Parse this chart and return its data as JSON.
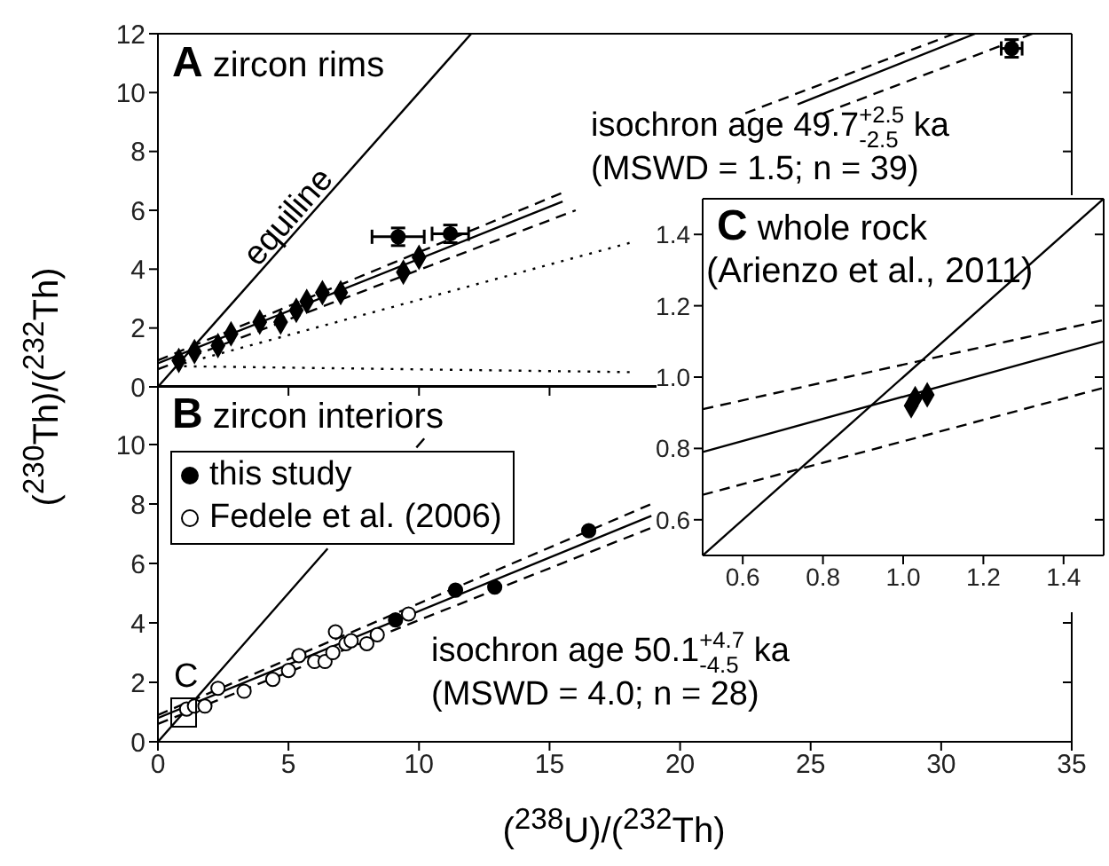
{
  "chart_data": [
    {
      "type": "scatter",
      "title": "A zircon rims",
      "ylabel": "($^{230}$Th)/($^{232}$Th)",
      "xlim": [
        0,
        35
      ],
      "xticks": [
        0,
        5,
        10,
        15,
        20,
        25,
        30,
        35
      ],
      "ylim": [
        0,
        12
      ],
      "yticks": [
        0,
        2,
        4,
        6,
        8,
        10,
        12
      ],
      "tick_labels": "y",
      "annotations": [
        "equiline",
        "isochron age 49.7$^{+2.5}$$_{-2.5}$ ka\n(MSWD = 1.5; n = 39)"
      ],
      "series": [
        {
          "type": "line",
          "x": [
            0,
            12
          ],
          "values": [
            0,
            12
          ],
          "color": "#000000",
          "line_style": "solid",
          "marker": "none"
        },
        {
          "type": "line",
          "x": [
            0,
            15.5,
            20,
            24.5,
            31.3
          ],
          "values": [
            0.8,
            6.3,
            null,
            9.6,
            12
          ],
          "color": "#000000",
          "line_style": "solid",
          "marker": "none"
        },
        {
          "type": "line",
          "x": [
            0,
            15.5,
            20,
            22.5,
            30.5
          ],
          "values": [
            0.9,
            6.6,
            null,
            9.3,
            12
          ],
          "color": "#000000",
          "line_style": "dashed",
          "marker": "none"
        },
        {
          "type": "line",
          "x": [
            0,
            16,
            20,
            25.5,
            33.5
          ],
          "values": [
            0.6,
            6.0,
            null,
            9.3,
            12
          ],
          "color": "#000000",
          "line_style": "dashed",
          "marker": "none"
        },
        {
          "type": "line",
          "x": [
            1,
            18.1
          ],
          "values": [
            0.8,
            4.9
          ],
          "color": "#000000",
          "line_style": "dotted",
          "marker": "none"
        },
        {
          "type": "line",
          "x": [
            1,
            18.1
          ],
          "values": [
            0.7,
            0.5
          ],
          "color": "#000000",
          "line_style": "dotted",
          "marker": "none"
        },
        {
          "x": [
            0.8,
            1.4,
            2.3,
            2.8,
            3.9,
            4.7,
            5.3,
            5.7,
            6.3,
            7.0,
            9.4,
            10.0
          ],
          "values": [
            0.9,
            1.2,
            1.4,
            1.8,
            2.2,
            2.2,
            2.6,
            2.9,
            3.2,
            3.2,
            3.9,
            4.4
          ],
          "color": "#000000",
          "marker": "diamond"
        },
        {
          "x": [
            9.2,
            11.2,
            32.7
          ],
          "values": [
            5.1,
            5.2,
            11.5
          ],
          "xerrors": [
            1.0,
            0.7,
            0.4
          ],
          "errors": [
            0.3,
            0.3,
            0.3
          ],
          "color": "#000000",
          "marker": "circle"
        }
      ]
    },
    {
      "type": "scatter",
      "title": "B zircon interiors",
      "xlabel": "($^{238}$U)/($^{232}$Th)",
      "xlim": [
        0,
        35
      ],
      "xticks": [
        0,
        5,
        10,
        15,
        20,
        25,
        30,
        35
      ],
      "ylim": [
        0,
        12
      ],
      "yticks": [
        0,
        2,
        4,
        6,
        8,
        10
      ],
      "legend": "top left",
      "annotations": [
        "isochron age 50.1$^{+4.7}$$_{-4.5}$ ka\n(MSWD = 4.0; n = 28)",
        "C"
      ],
      "series": [
        {
          "type": "line",
          "x": [
            0,
            6.5,
            8,
            9.9,
            10.2
          ],
          "values": [
            0,
            6.5,
            null,
            9.9,
            10.2
          ],
          "color": "#000000",
          "line_style": "solid",
          "marker": "none"
        },
        {
          "type": "line",
          "x": [
            0,
            18.9
          ],
          "values": [
            0.8,
            7.6
          ],
          "color": "#000000",
          "line_style": "solid",
          "marker": "none"
        },
        {
          "type": "line",
          "x": [
            0,
            18.9
          ],
          "values": [
            0.9,
            8.0
          ],
          "color": "#000000",
          "line_style": "dashed",
          "marker": "none"
        },
        {
          "type": "line",
          "x": [
            0,
            18.9
          ],
          "values": [
            0.6,
            7.2
          ],
          "color": "#000000",
          "line_style": "dashed",
          "marker": "none"
        },
        {
          "name": "this study",
          "x": [
            9.1,
            11.4,
            12.9,
            16.5
          ],
          "values": [
            4.1,
            5.1,
            5.2,
            7.1
          ],
          "color": "#000000",
          "marker": "circle"
        },
        {
          "name": "Fedele et al. (2006)",
          "x": [
            1.1,
            1.4,
            1.8,
            2.3,
            3.3,
            4.4,
            5.0,
            5.4,
            6.0,
            6.4,
            6.7,
            6.8,
            7.2,
            7.4,
            8.0,
            8.4,
            9.6
          ],
          "values": [
            1.1,
            1.2,
            1.2,
            1.8,
            1.7,
            2.1,
            2.4,
            2.9,
            2.7,
            2.7,
            3.0,
            3.7,
            3.3,
            3.4,
            3.3,
            3.6,
            4.3
          ],
          "color": "#ffffff",
          "marker": "circle"
        }
      ]
    },
    {
      "type": "scatter",
      "title": "C whole rock",
      "subtitle": "(Arienzo et al., 2011)",
      "xlim": [
        0.5,
        1.5
      ],
      "xticks": [
        0.6,
        0.8,
        {
          "value": 1,
          "label": "1.0"
        },
        1.2,
        1.4
      ],
      "ylim": [
        0.5,
        1.5
      ],
      "yticks": [
        0.6,
        0.8,
        {
          "value": 1,
          "label": "1.0"
        },
        1.2,
        1.4
      ],
      "series": [
        {
          "type": "line",
          "x": [
            0.5,
            1.5
          ],
          "values": [
            0.5,
            1.5
          ],
          "color": "#000000",
          "line_style": "solid",
          "marker": "none"
        },
        {
          "type": "line",
          "x": [
            0.5,
            1.5
          ],
          "values": [
            0.79,
            1.1
          ],
          "color": "#000000",
          "line_style": "solid",
          "marker": "none"
        },
        {
          "type": "line",
          "x": [
            0.5,
            1.5
          ],
          "values": [
            0.91,
            1.16
          ],
          "color": "#000000",
          "line_style": "dashed",
          "marker": "none"
        },
        {
          "type": "line",
          "x": [
            0.5,
            1.5
          ],
          "values": [
            0.67,
            0.97
          ],
          "color": "#000000",
          "line_style": "dashed",
          "marker": "none"
        },
        {
          "x": [
            1.02,
            1.03,
            1.06
          ],
          "values": [
            0.92,
            0.94,
            0.95
          ],
          "color": "#000000",
          "marker": "diamond"
        }
      ]
    }
  ]
}
